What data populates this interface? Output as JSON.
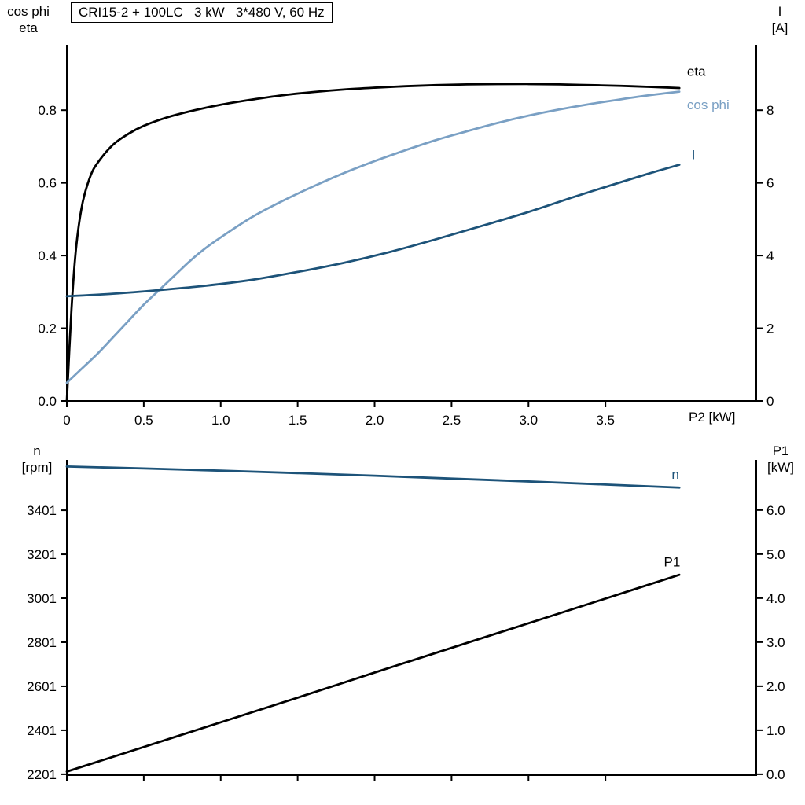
{
  "title": "CRI15-2 + 100LC   3 kW   3*480 V, 60 Hz",
  "colors": {
    "black": "#000000",
    "dark_blue": "#1d5379",
    "light_blue": "#7aa0c4",
    "axis": "#000000"
  },
  "chart_data": [
    {
      "type": "line",
      "id": "motor-curves",
      "left_axis": {
        "corner_label_lines": [
          "cos phi",
          "eta"
        ],
        "min": 0,
        "max": 0.98,
        "ticks": [
          {
            "v": 0.0,
            "label": "0.0"
          },
          {
            "v": 0.2,
            "label": "0.2"
          },
          {
            "v": 0.4,
            "label": "0.4"
          },
          {
            "v": 0.6,
            "label": "0.6"
          },
          {
            "v": 0.8,
            "label": "0.8"
          }
        ]
      },
      "right_axis": {
        "corner_label_lines": [
          "I",
          "[A]"
        ],
        "min": 0,
        "max": 9.8,
        "ticks": [
          {
            "v": 0,
            "label": "0"
          },
          {
            "v": 2,
            "label": "2"
          },
          {
            "v": 4,
            "label": "4"
          },
          {
            "v": 6,
            "label": "6"
          },
          {
            "v": 8,
            "label": "8"
          }
        ]
      },
      "x_axis": {
        "label": "P2 [kW]",
        "min": 0,
        "max": 4.48,
        "show_tick_labels": true,
        "ticks": [
          {
            "v": 0,
            "label": "0"
          },
          {
            "v": 0.5,
            "label": "0.5"
          },
          {
            "v": 1.0,
            "label": "1.0"
          },
          {
            "v": 1.5,
            "label": "1.5"
          },
          {
            "v": 2.0,
            "label": "2.0"
          },
          {
            "v": 2.5,
            "label": "2.5"
          },
          {
            "v": 3.0,
            "label": "3.0"
          },
          {
            "v": 3.5,
            "label": "3.5"
          }
        ]
      },
      "series": [
        {
          "name": "eta",
          "axis": "left",
          "color": "#000000",
          "label": "eta",
          "label_pos": [
            4.03,
            0.895
          ],
          "points": [
            [
              0,
              0
            ],
            [
              0.03,
              0.25
            ],
            [
              0.06,
              0.42
            ],
            [
              0.1,
              0.54
            ],
            [
              0.15,
              0.615
            ],
            [
              0.2,
              0.655
            ],
            [
              0.3,
              0.705
            ],
            [
              0.4,
              0.735
            ],
            [
              0.5,
              0.757
            ],
            [
              0.65,
              0.78
            ],
            [
              0.8,
              0.797
            ],
            [
              1.0,
              0.815
            ],
            [
              1.2,
              0.829
            ],
            [
              1.4,
              0.841
            ],
            [
              1.6,
              0.85
            ],
            [
              1.8,
              0.857
            ],
            [
              2.0,
              0.862
            ],
            [
              2.2,
              0.866
            ],
            [
              2.4,
              0.869
            ],
            [
              2.6,
              0.871
            ],
            [
              2.8,
              0.872
            ],
            [
              3.0,
              0.872
            ],
            [
              3.2,
              0.871
            ],
            [
              3.4,
              0.869
            ],
            [
              3.6,
              0.867
            ],
            [
              3.8,
              0.864
            ],
            [
              3.98,
              0.861
            ]
          ]
        },
        {
          "name": "cos phi",
          "axis": "left",
          "color": "#7aa0c4",
          "label": "cos phi",
          "label_pos": [
            4.03,
            0.803
          ],
          "points": [
            [
              0,
              0.05
            ],
            [
              0.1,
              0.09
            ],
            [
              0.2,
              0.13
            ],
            [
              0.3,
              0.175
            ],
            [
              0.4,
              0.22
            ],
            [
              0.5,
              0.265
            ],
            [
              0.6,
              0.305
            ],
            [
              0.7,
              0.345
            ],
            [
              0.8,
              0.385
            ],
            [
              0.9,
              0.42
            ],
            [
              1.0,
              0.45
            ],
            [
              1.2,
              0.505
            ],
            [
              1.4,
              0.55
            ],
            [
              1.6,
              0.59
            ],
            [
              1.8,
              0.627
            ],
            [
              2.0,
              0.66
            ],
            [
              2.2,
              0.69
            ],
            [
              2.4,
              0.718
            ],
            [
              2.6,
              0.742
            ],
            [
              2.8,
              0.765
            ],
            [
              3.0,
              0.785
            ],
            [
              3.2,
              0.802
            ],
            [
              3.4,
              0.817
            ],
            [
              3.6,
              0.83
            ],
            [
              3.8,
              0.842
            ],
            [
              3.98,
              0.851
            ]
          ]
        },
        {
          "name": "I",
          "axis": "right",
          "color": "#1d5379",
          "label": "I",
          "label_pos": [
            4.06,
            6.65
          ],
          "points": [
            [
              0,
              2.88
            ],
            [
              0.3,
              2.95
            ],
            [
              0.6,
              3.05
            ],
            [
              0.9,
              3.17
            ],
            [
              1.2,
              3.33
            ],
            [
              1.5,
              3.55
            ],
            [
              1.8,
              3.8
            ],
            [
              2.1,
              4.1
            ],
            [
              2.4,
              4.45
            ],
            [
              2.7,
              4.82
            ],
            [
              3.0,
              5.2
            ],
            [
              3.3,
              5.62
            ],
            [
              3.6,
              6.02
            ],
            [
              3.8,
              6.28
            ],
            [
              3.98,
              6.5
            ]
          ]
        }
      ]
    },
    {
      "type": "line",
      "id": "speed-power-curves",
      "left_axis": {
        "corner_label_lines": [
          "n",
          "[rpm]"
        ],
        "min": 2197,
        "max": 3630,
        "ticks": [
          {
            "v": 2201,
            "label": "2201"
          },
          {
            "v": 2401,
            "label": "2401"
          },
          {
            "v": 2601,
            "label": "2601"
          },
          {
            "v": 2801,
            "label": "2801"
          },
          {
            "v": 3001,
            "label": "3001"
          },
          {
            "v": 3201,
            "label": "3201"
          },
          {
            "v": 3401,
            "label": "3401"
          }
        ]
      },
      "right_axis": {
        "corner_label_lines": [
          "P1",
          "[kW]"
        ],
        "min": -0.02,
        "max": 7.14,
        "ticks": [
          {
            "v": 0.0,
            "label": "0.0"
          },
          {
            "v": 1.0,
            "label": "1.0"
          },
          {
            "v": 2.0,
            "label": "2.0"
          },
          {
            "v": 3.0,
            "label": "3.0"
          },
          {
            "v": 4.0,
            "label": "4.0"
          },
          {
            "v": 5.0,
            "label": "5.0"
          },
          {
            "v": 6.0,
            "label": "6.0"
          }
        ]
      },
      "x_axis": {
        "label": "",
        "min": 0,
        "max": 4.48,
        "show_tick_labels": false,
        "ticks": [
          {
            "v": 0,
            "label": ""
          },
          {
            "v": 0.5,
            "label": ""
          },
          {
            "v": 1.0,
            "label": ""
          },
          {
            "v": 1.5,
            "label": ""
          },
          {
            "v": 2.0,
            "label": ""
          },
          {
            "v": 2.5,
            "label": ""
          },
          {
            "v": 3.0,
            "label": ""
          },
          {
            "v": 3.5,
            "label": ""
          }
        ]
      },
      "series": [
        {
          "name": "n",
          "axis": "left",
          "color": "#1d5379",
          "label": "n",
          "label_pos": [
            3.93,
            3545
          ],
          "points": [
            [
              0,
              3600
            ],
            [
              0.5,
              3591
            ],
            [
              1.0,
              3581
            ],
            [
              1.5,
              3570
            ],
            [
              2.0,
              3558
            ],
            [
              2.5,
              3545
            ],
            [
              3.0,
              3532
            ],
            [
              3.5,
              3518
            ],
            [
              3.98,
              3504
            ]
          ]
        },
        {
          "name": "P1",
          "axis": "right",
          "color": "#000000",
          "label": "P1",
          "label_pos": [
            3.88,
            4.72
          ],
          "points": [
            [
              0,
              0.06
            ],
            [
              0.5,
              0.62
            ],
            [
              1.0,
              1.18
            ],
            [
              1.5,
              1.74
            ],
            [
              2.0,
              2.31
            ],
            [
              2.5,
              2.87
            ],
            [
              3.0,
              3.43
            ],
            [
              3.5,
              3.99
            ],
            [
              3.98,
              4.53
            ]
          ]
        }
      ]
    }
  ]
}
